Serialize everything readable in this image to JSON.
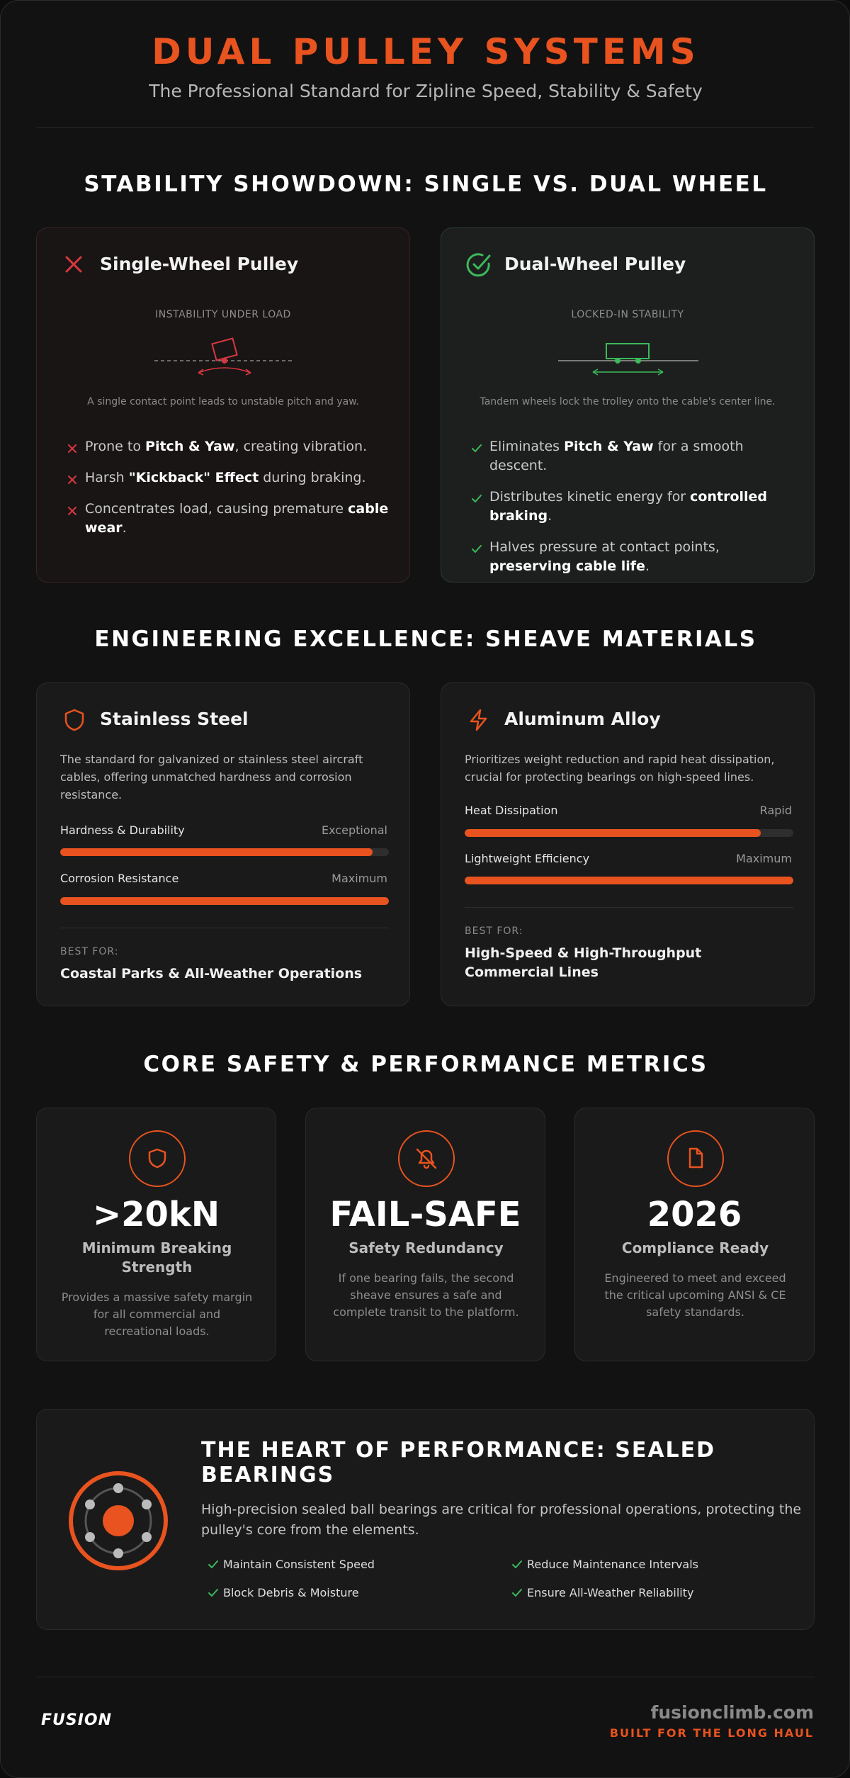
{
  "header": {
    "title": "DUAL PULLEY SYSTEMS",
    "subtitle": "The Professional Standard for Zipline Speed, Stability & Safety"
  },
  "comparison": {
    "heading": "STABILITY SHOWDOWN: SINGLE VS. DUAL WHEEL",
    "cards": [
      {
        "title": "Single-Wheel Pulley",
        "diagram_label": "INSTABILITY UNDER LOAD",
        "caption": "A single contact point leads to unstable pitch and yaw.",
        "points": [
          [
            "Prone to ",
            "Pitch & Yaw",
            ", creating vibration."
          ],
          [
            "Harsh ",
            "\"Kickback\" Effect",
            " during braking."
          ],
          [
            "Concentrates load, causing premature ",
            "cable wear",
            "."
          ]
        ]
      },
      {
        "title": "Dual-Wheel Pulley",
        "diagram_label": "LOCKED-IN STABILITY",
        "caption": "Tandem wheels lock the trolley onto the cable's center line.",
        "points": [
          [
            "Eliminates ",
            "Pitch & Yaw",
            " for a smooth descent."
          ],
          [
            "Distributes kinetic energy for ",
            "controlled braking",
            "."
          ],
          [
            "Halves pressure at contact points, ",
            "preserving cable life",
            "."
          ]
        ]
      }
    ]
  },
  "materials": {
    "heading": "ENGINEERING EXCELLENCE: SHEAVE MATERIALS",
    "cards": [
      {
        "title": "Stainless Steel",
        "description": "The standard for galvanized or stainless steel aircraft cables, offering unmatched hardness and corrosion resistance.",
        "metrics": [
          {
            "label": "Hardness & Durability",
            "rating": "Exceptional",
            "level": 95
          },
          {
            "label": "Corrosion Resistance",
            "rating": "Maximum",
            "level": 100
          }
        ],
        "best_for_label": "BEST FOR:",
        "best_for": "Coastal Parks & All-Weather Operations"
      },
      {
        "title": "Aluminum Alloy",
        "description": "Prioritizes weight reduction and rapid heat dissipation, crucial for protecting bearings on high-speed lines.",
        "metrics": [
          {
            "label": "Heat Dissipation",
            "rating": "Rapid",
            "level": 90
          },
          {
            "label": "Lightweight Efficiency",
            "rating": "Maximum",
            "level": 100
          }
        ],
        "best_for_label": "BEST FOR:",
        "best_for": "High-Speed & High-Throughput Commercial Lines"
      }
    ]
  },
  "metrics": {
    "heading": "CORE SAFETY & PERFORMANCE METRICS",
    "cards": [
      {
        "value": ">20kN",
        "label": "Minimum Breaking Strength",
        "description": "Provides a massive safety margin for all commercial and recreational loads."
      },
      {
        "value": "FAIL-SAFE",
        "label": "Safety Redundancy",
        "description": "If one bearing fails, the second sheave ensures a safe and complete transit to the platform."
      },
      {
        "value": "2026",
        "label": "Compliance Ready",
        "description": "Engineered to meet and exceed the critical upcoming ANSI & CE safety standards."
      }
    ]
  },
  "bearings": {
    "heading": "THE HEART OF PERFORMANCE: SEALED BEARINGS",
    "description": "High-precision sealed ball bearings are critical for professional operations, protecting the pulley's core from the elements.",
    "features": [
      "Maintain Consistent Speed",
      "Reduce Maintenance Intervals",
      "Block Debris & Moisture",
      "Ensure All-Weather Reliability"
    ]
  },
  "footer": {
    "logo": "FUSION",
    "site": "fusionclimb.com",
    "tagline": "BUILT FOR THE LONG HAUL"
  }
}
